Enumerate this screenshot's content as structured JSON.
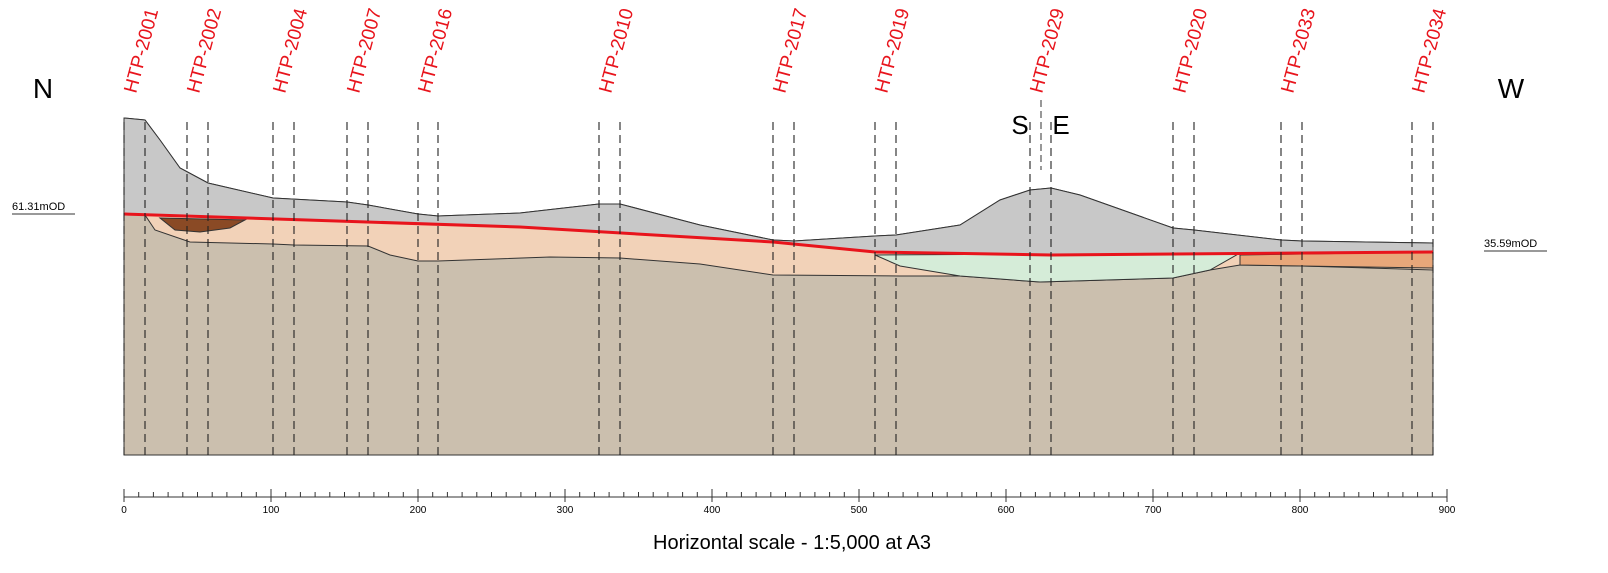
{
  "boreholes": [
    "HTP-2001",
    "HTP-2002",
    "HTP-2004",
    "HTP-2007",
    "HTP-2016",
    "HTP-2010",
    "HTP-2017",
    "HTP-2019",
    "HTP-2029",
    "HTP-2020",
    "HTP-2033",
    "HTP-2034"
  ],
  "compass": {
    "left": "N",
    "right": "W",
    "break_left": "S",
    "break_right": "E"
  },
  "levels": {
    "left": "61.31mOD",
    "right": "35.59mOD"
  },
  "scale": {
    "ticks": [
      0,
      100,
      200,
      300,
      400,
      500,
      600,
      700,
      800,
      900
    ],
    "caption": "Horizontal scale - 1:5,000 at A3"
  }
}
